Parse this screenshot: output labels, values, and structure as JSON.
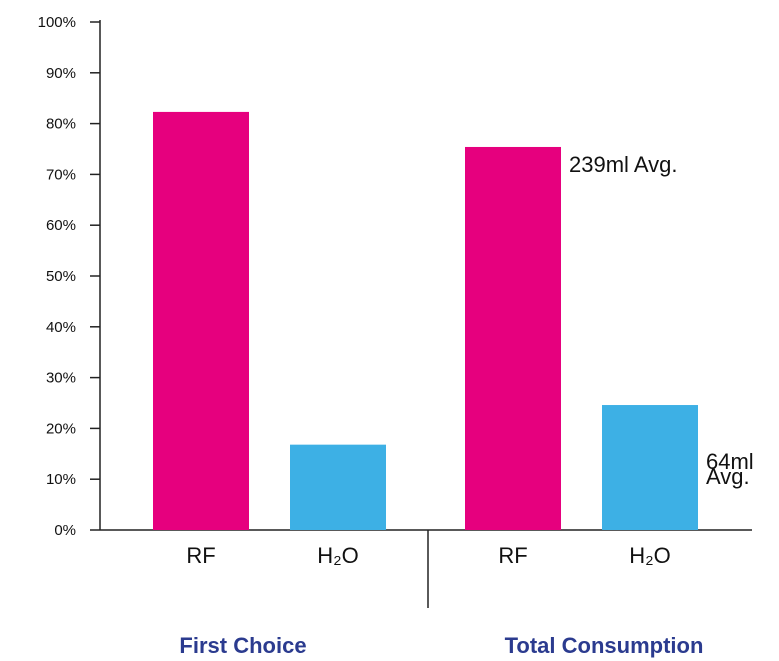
{
  "chart_data": {
    "type": "bar",
    "ylim": [
      0,
      100
    ],
    "y_ticks": [
      "0%",
      "10%",
      "20%",
      "30%",
      "40%",
      "50%",
      "60%",
      "70%",
      "80%",
      "90%",
      "100%"
    ],
    "groups": [
      {
        "label": "First Choice",
        "bars": [
          {
            "label": "RF",
            "value": 82.3,
            "color": "#e6007e",
            "annotation": ""
          },
          {
            "label": "H₂O",
            "value": 16.8,
            "color": "#3db0e5",
            "annotation": ""
          }
        ]
      },
      {
        "label": "Total Consumption",
        "bars": [
          {
            "label": "RF",
            "value": 75.4,
            "color": "#e6007e",
            "annotation": "239ml Avg."
          },
          {
            "label": "H₂O",
            "value": 24.6,
            "color": "#3db0e5",
            "annotation": "64ml Avg."
          }
        ]
      }
    ],
    "group_label_color": "#2b3b8f",
    "grid": false,
    "legend": "none"
  }
}
